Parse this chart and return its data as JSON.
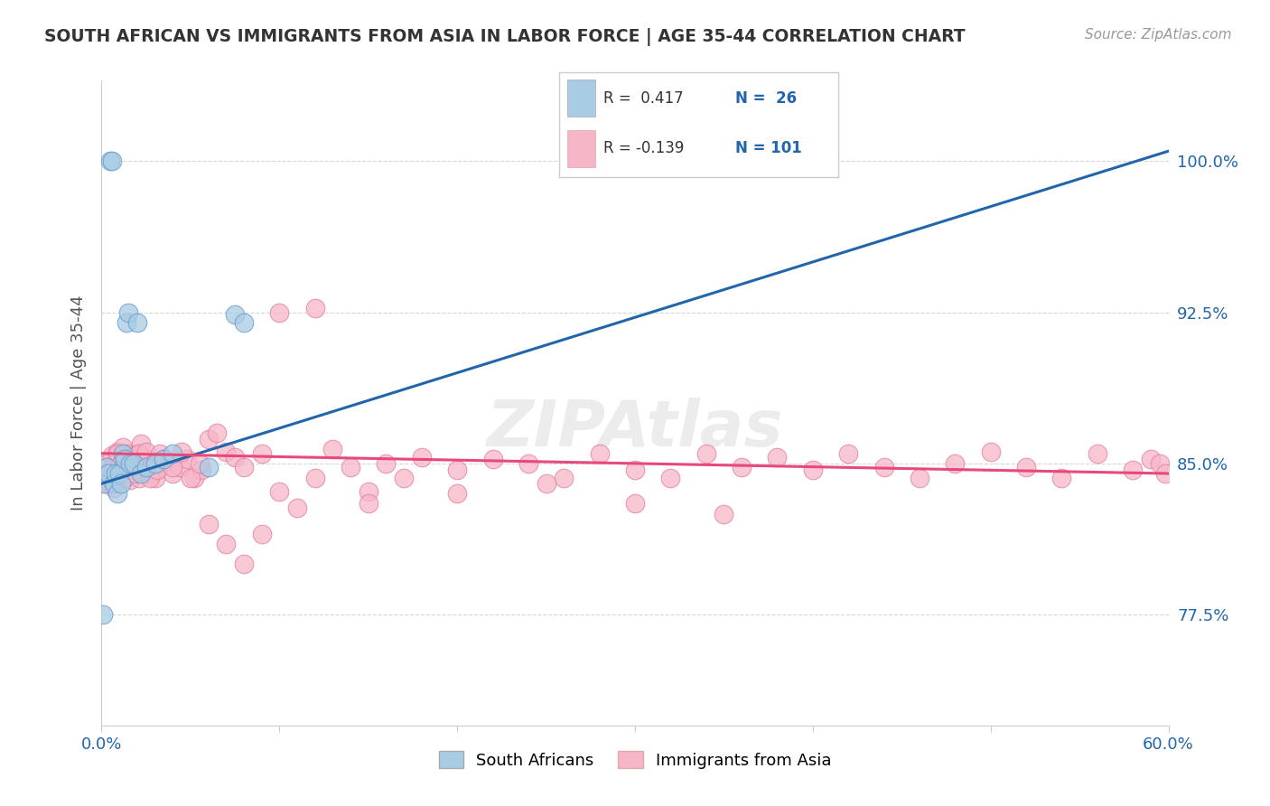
{
  "title": "SOUTH AFRICAN VS IMMIGRANTS FROM ASIA IN LABOR FORCE | AGE 35-44 CORRELATION CHART",
  "source": "Source: ZipAtlas.com",
  "ylabel": "In Labor Force | Age 35-44",
  "ytick_labels": [
    "77.5%",
    "85.0%",
    "92.5%",
    "100.0%"
  ],
  "ytick_values": [
    0.775,
    0.85,
    0.925,
    1.0
  ],
  "xmin": 0.0,
  "xmax": 0.6,
  "ymin": 0.72,
  "ymax": 1.04,
  "blue_color": "#a8cce4",
  "pink_color": "#f7b6c8",
  "trend_blue_color": "#2166ac",
  "trend_pink_color": "#e8487a",
  "label_color_blue": "#2166ac",
  "tick_color": "#2166ac",
  "watermark": "ZIPAtlas",
  "legend_box_color": "#e8e8e8",
  "sa_x": [
    0.001,
    0.002,
    0.003,
    0.004,
    0.005,
    0.006,
    0.007,
    0.008,
    0.009,
    0.01,
    0.011,
    0.012,
    0.013,
    0.014,
    0.015,
    0.016,
    0.018,
    0.02,
    0.022,
    0.025,
    0.03,
    0.035,
    0.04,
    0.06,
    0.075,
    0.08
  ],
  "sa_y": [
    0.775,
    0.84,
    0.848,
    0.845,
    1.0,
    1.0,
    0.84,
    0.845,
    0.835,
    0.845,
    0.84,
    0.855,
    0.852,
    0.92,
    0.925,
    0.85,
    0.85,
    0.92,
    0.845,
    0.848,
    0.85,
    0.852,
    0.855,
    0.848,
    0.924,
    0.92
  ],
  "asia_x": [
    0.002,
    0.003,
    0.004,
    0.005,
    0.006,
    0.007,
    0.008,
    0.009,
    0.01,
    0.011,
    0.012,
    0.013,
    0.014,
    0.015,
    0.016,
    0.017,
    0.018,
    0.019,
    0.02,
    0.021,
    0.022,
    0.024,
    0.026,
    0.028,
    0.03,
    0.033,
    0.036,
    0.04,
    0.044,
    0.048,
    0.052,
    0.056,
    0.06,
    0.065,
    0.07,
    0.075,
    0.08,
    0.09,
    0.1,
    0.11,
    0.12,
    0.13,
    0.14,
    0.15,
    0.16,
    0.17,
    0.18,
    0.2,
    0.22,
    0.24,
    0.26,
    0.28,
    0.3,
    0.32,
    0.34,
    0.36,
    0.38,
    0.4,
    0.42,
    0.44,
    0.46,
    0.48,
    0.5,
    0.52,
    0.54,
    0.56,
    0.58,
    0.59,
    0.595,
    0.598,
    0.005,
    0.007,
    0.009,
    0.011,
    0.013,
    0.015,
    0.017,
    0.019,
    0.021,
    0.023,
    0.025,
    0.027,
    0.029,
    0.031,
    0.033,
    0.035,
    0.04,
    0.045,
    0.05,
    0.055,
    0.06,
    0.07,
    0.08,
    0.09,
    0.1,
    0.12,
    0.15,
    0.2,
    0.25,
    0.3,
    0.35
  ],
  "asia_y": [
    0.84,
    0.85,
    0.843,
    0.847,
    0.854,
    0.849,
    0.84,
    0.856,
    0.852,
    0.845,
    0.858,
    0.843,
    0.855,
    0.848,
    0.842,
    0.853,
    0.847,
    0.852,
    0.855,
    0.843,
    0.86,
    0.848,
    0.852,
    0.845,
    0.843,
    0.848,
    0.851,
    0.845,
    0.848,
    0.852,
    0.843,
    0.847,
    0.862,
    0.865,
    0.856,
    0.853,
    0.848,
    0.855,
    0.836,
    0.828,
    0.843,
    0.857,
    0.848,
    0.836,
    0.85,
    0.843,
    0.853,
    0.847,
    0.852,
    0.85,
    0.843,
    0.855,
    0.847,
    0.843,
    0.855,
    0.848,
    0.853,
    0.847,
    0.855,
    0.848,
    0.843,
    0.85,
    0.856,
    0.848,
    0.843,
    0.855,
    0.847,
    0.852,
    0.85,
    0.845,
    0.84,
    0.838,
    0.855,
    0.85,
    0.843,
    0.847,
    0.852,
    0.845,
    0.855,
    0.848,
    0.856,
    0.843,
    0.85,
    0.847,
    0.855,
    0.852,
    0.848,
    0.856,
    0.843,
    0.85,
    0.82,
    0.81,
    0.8,
    0.815,
    0.925,
    0.927,
    0.83,
    0.835,
    0.84,
    0.83,
    0.825
  ],
  "blue_trend_x0": 0.0,
  "blue_trend_y0": 0.84,
  "blue_trend_x1": 0.6,
  "blue_trend_y1": 1.005,
  "pink_trend_x0": 0.0,
  "pink_trend_y0": 0.855,
  "pink_trend_x1": 0.6,
  "pink_trend_y1": 0.845
}
